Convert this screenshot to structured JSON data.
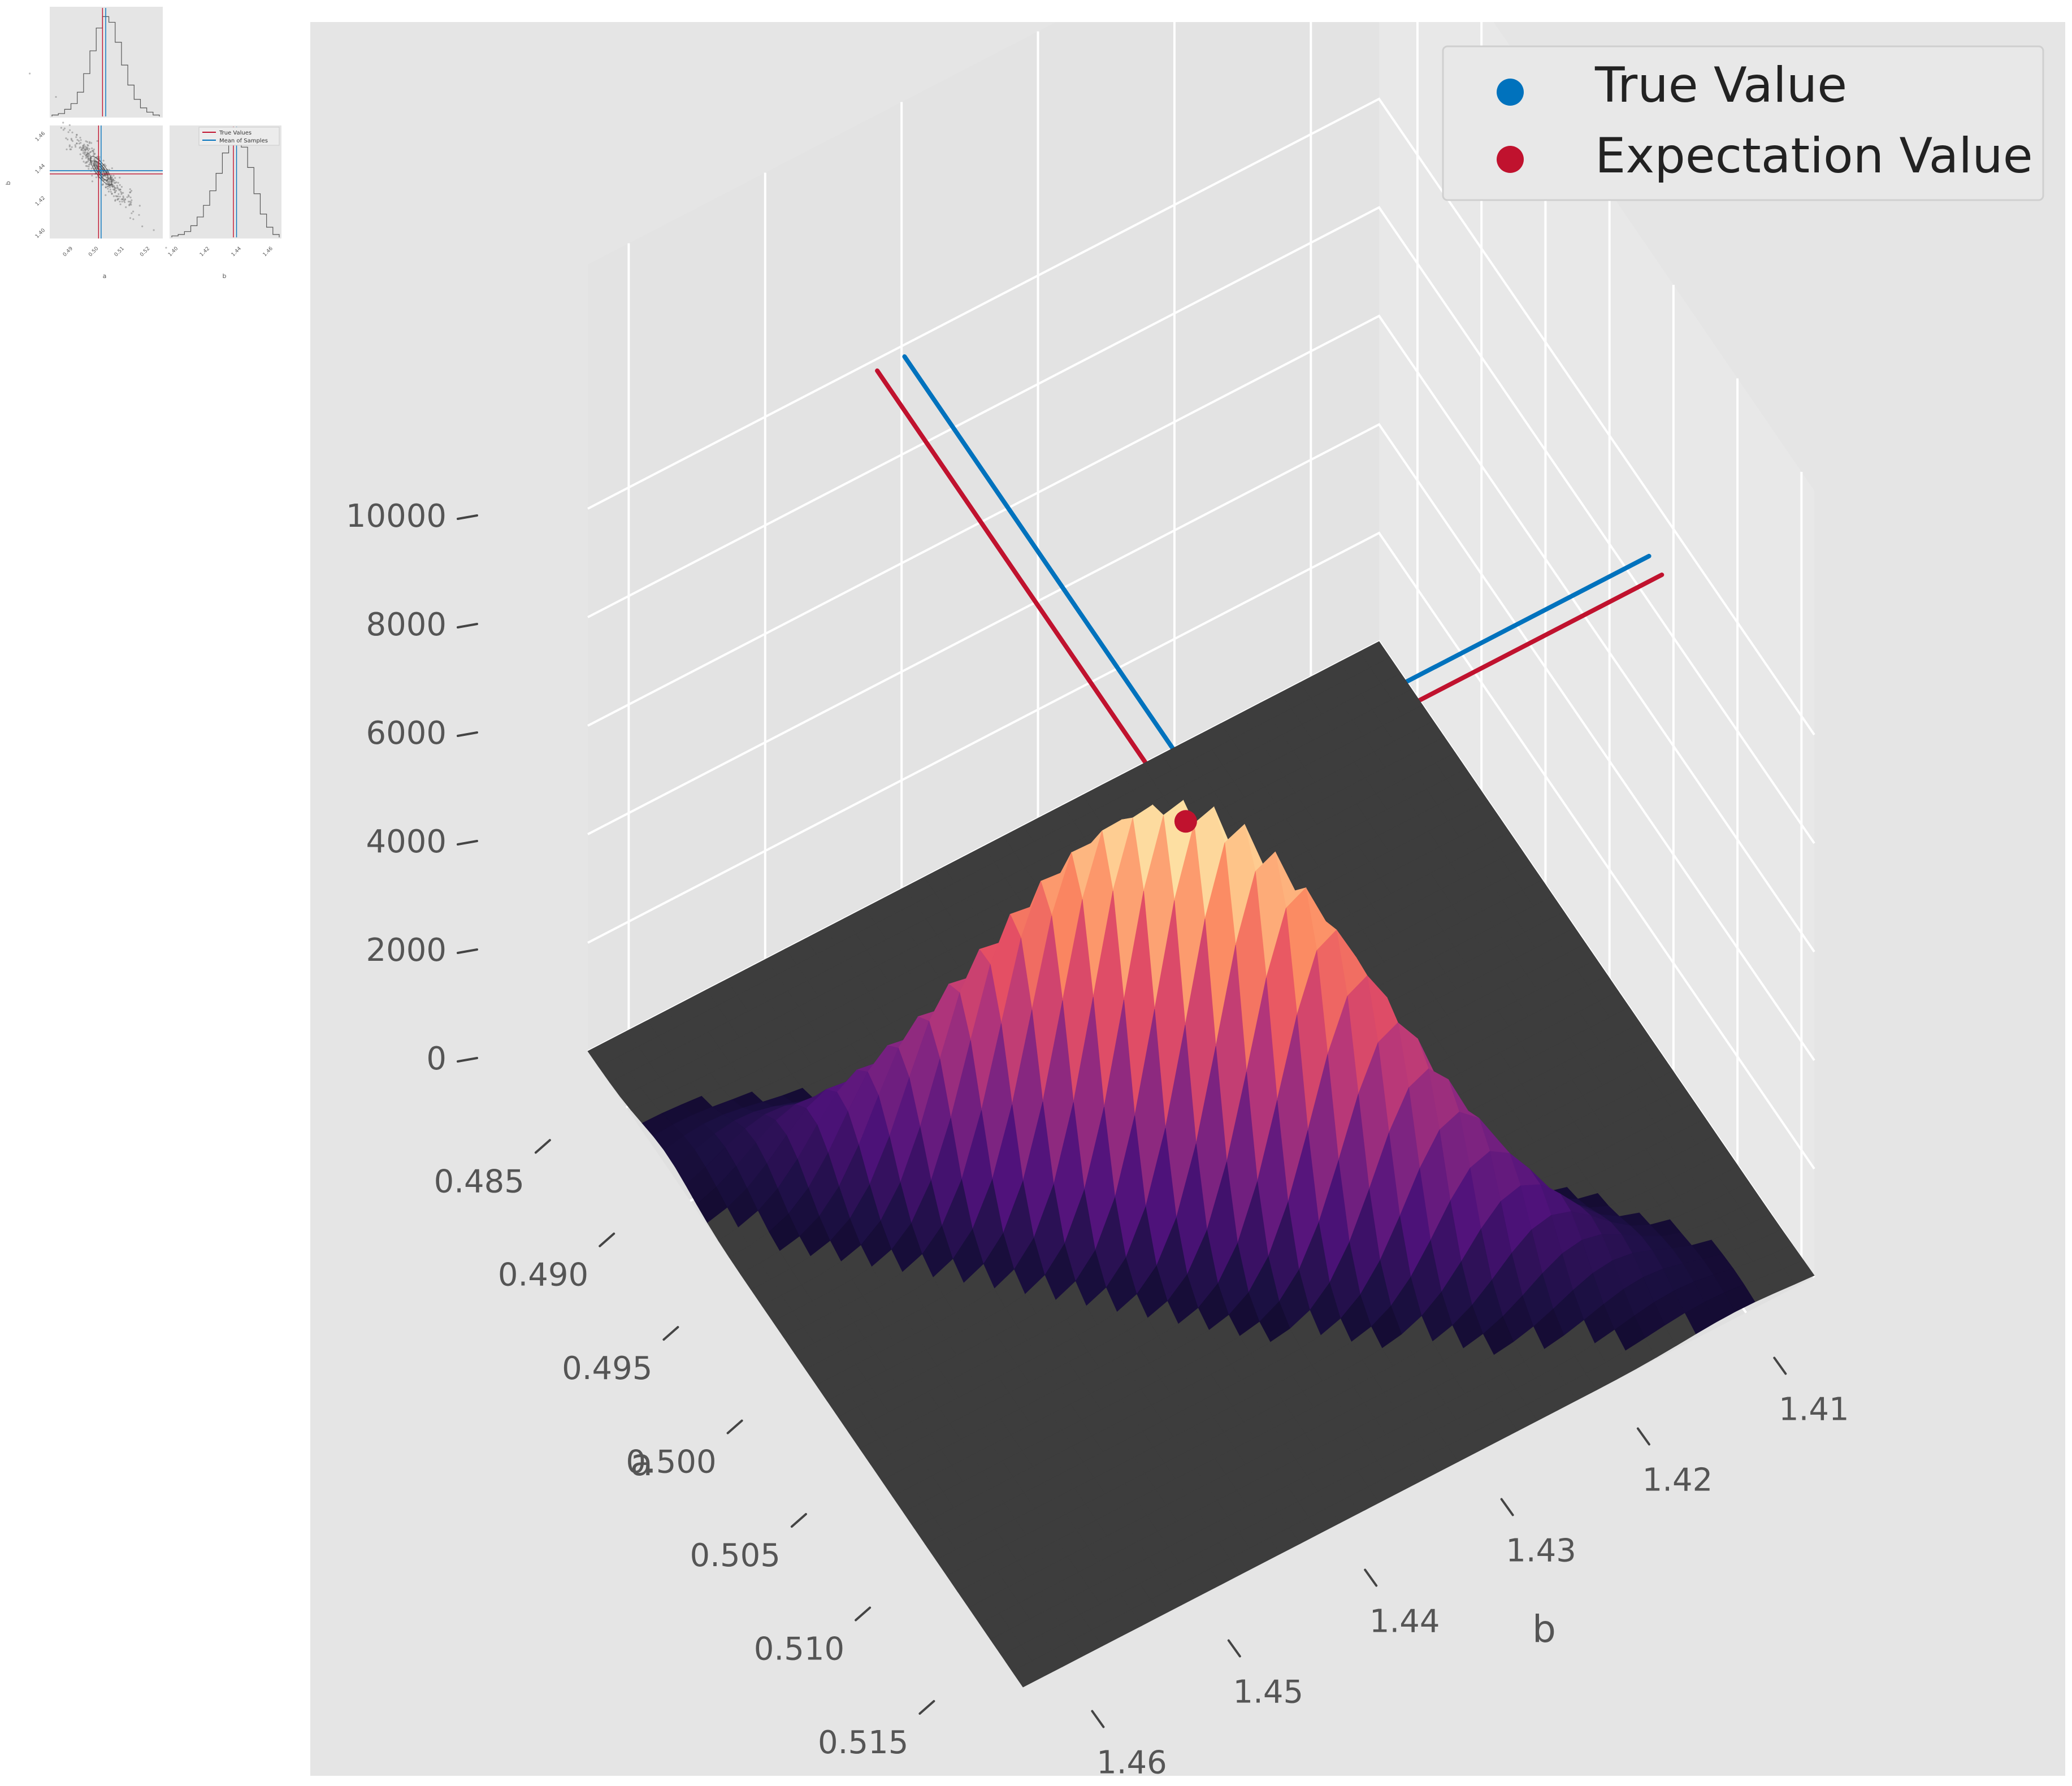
{
  "chart_data": [
    {
      "type": "histogram",
      "panel": "corner-a-marginal",
      "bins": [
        0.484,
        0.486,
        0.488,
        0.49,
        0.492,
        0.494,
        0.496,
        0.498,
        0.5,
        0.502,
        0.504,
        0.506,
        0.508,
        0.51,
        0.512,
        0.514,
        0.516,
        0.518
      ],
      "values": [
        1,
        2,
        5,
        9,
        17,
        30,
        46,
        62,
        70,
        66,
        52,
        36,
        22,
        12,
        6,
        3,
        1
      ],
      "lines": {
        "true_value": 0.5,
        "mean_of_samples": 0.501
      }
    },
    {
      "type": "scatter",
      "panel": "corner-ab-joint",
      "xlabel": "a",
      "ylabel": "b",
      "x_ticks": [
        "0.49",
        "0.50",
        "0.51",
        "0.52"
      ],
      "y_ticks": [
        "1.40",
        "1.42",
        "1.44",
        "1.46"
      ],
      "xlim": [
        0.481,
        0.525
      ],
      "ylim": [
        1.395,
        1.465
      ],
      "legend": [
        "True Values",
        "Mean of Samples"
      ],
      "correlation": "negative",
      "true_value": {
        "a": 0.5,
        "b": 1.435
      },
      "mean_of_samples": {
        "a": 0.501,
        "b": 1.437
      }
    },
    {
      "type": "histogram",
      "panel": "corner-b-marginal",
      "xlabel": "b",
      "x_ticks": [
        "1.40",
        "1.42",
        "1.44",
        "1.46"
      ],
      "bins": [
        1.396,
        1.4,
        1.404,
        1.408,
        1.412,
        1.416,
        1.42,
        1.424,
        1.428,
        1.432,
        1.436,
        1.44,
        1.444,
        1.448,
        1.452,
        1.456,
        1.46,
        1.464
      ],
      "values": [
        1,
        2,
        4,
        8,
        14,
        22,
        32,
        44,
        58,
        68,
        70,
        62,
        48,
        30,
        16,
        7,
        2
      ],
      "lines": {
        "true_value": 1.435,
        "mean_of_samples": 1.437
      }
    },
    {
      "type": "surface",
      "panel": "main-3d",
      "xlabel": "a",
      "ylabel": "b",
      "zlabel": "",
      "a_ticks": [
        "0.485",
        "0.490",
        "0.495",
        "0.500",
        "0.505",
        "0.510",
        "0.515"
      ],
      "b_ticks": [
        "1.41",
        "1.42",
        "1.43",
        "1.44",
        "1.45",
        "1.46"
      ],
      "z_ticks": [
        "0",
        "2000",
        "4000",
        "6000",
        "8000",
        "10000"
      ],
      "xlim": [
        0.482,
        0.516
      ],
      "ylim": [
        1.405,
        1.463
      ],
      "zlim": [
        0,
        10000
      ],
      "peak_z": 7800,
      "colormap": "magma",
      "series": [
        {
          "name": "True Value",
          "color": "#0072bd",
          "a": 0.5,
          "b": 1.435
        },
        {
          "name": "Expectation Value",
          "color": "#c0122e",
          "a": 0.501,
          "b": 1.437,
          "z": 7400
        }
      ],
      "legend_position": "top-right"
    }
  ]
}
